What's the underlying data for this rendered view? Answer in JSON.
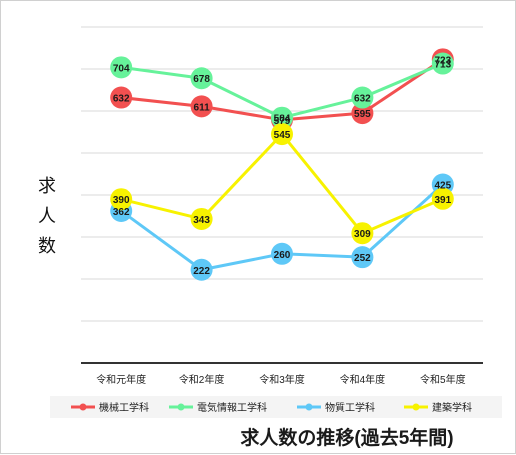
{
  "chart_data": {
    "type": "line",
    "title": "求人数の推移(過去5年間)",
    "ylabel": "求人数",
    "xlabel": "",
    "categories": [
      "令和元年度",
      "令和2年度",
      "令和3年度",
      "令和4年度",
      "令和5年度"
    ],
    "ylim": [
      0,
      800
    ],
    "grid": true,
    "legend_position": "bottom",
    "series": [
      {
        "name": "機械工学科",
        "color": "#f25050",
        "values": [
          632,
          611,
          579,
          595,
          723
        ]
      },
      {
        "name": "電気情報工学科",
        "color": "#66f29a",
        "values": [
          704,
          678,
          584,
          632,
          713
        ]
      },
      {
        "name": "物質工学科",
        "color": "#5ec8f7",
        "values": [
          362,
          222,
          260,
          252,
          425
        ]
      },
      {
        "name": "建築学科",
        "color": "#f7f200",
        "values": [
          390,
          343,
          545,
          309,
          391
        ]
      }
    ]
  }
}
